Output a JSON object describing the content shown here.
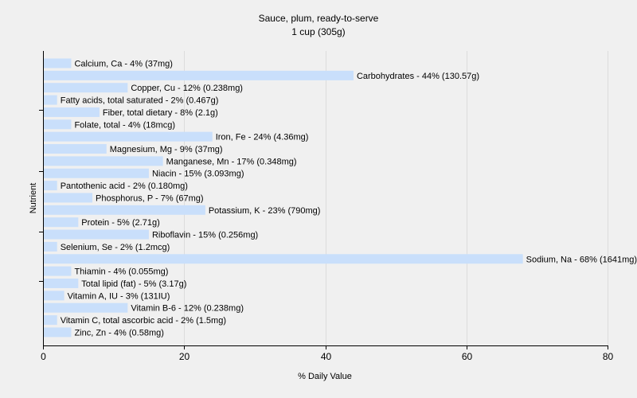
{
  "chart_data": {
    "type": "bar",
    "orientation": "horizontal",
    "title": "Sauce, plum, ready-to-serve",
    "subtitle": "1 cup (305g)",
    "xlabel": "% Daily Value",
    "ylabel": "Nutrient",
    "xlim": [
      0,
      80
    ],
    "xticks": [
      "0",
      "20",
      "40",
      "60",
      "80"
    ],
    "grid": true,
    "bar_color": "#c9dffb",
    "categories": [
      "Calcium, Ca",
      "Carbohydrates",
      "Copper, Cu",
      "Fatty acids, total saturated",
      "Fiber, total dietary",
      "Folate, total",
      "Iron, Fe",
      "Magnesium, Mg",
      "Manganese, Mn",
      "Niacin",
      "Pantothenic acid",
      "Phosphorus, P",
      "Potassium, K",
      "Protein",
      "Riboflavin",
      "Selenium, Se",
      "Sodium, Na",
      "Thiamin",
      "Total lipid (fat)",
      "Vitamin A, IU",
      "Vitamin B-6",
      "Vitamin C, total ascorbic acid",
      "Zinc, Zn"
    ],
    "values": [
      4,
      44,
      12,
      2,
      8,
      4,
      24,
      9,
      17,
      15,
      2,
      7,
      23,
      5,
      15,
      2,
      68,
      4,
      5,
      3,
      12,
      2,
      4
    ],
    "labels": [
      "Calcium, Ca - 4% (37mg)",
      "Carbohydrates - 44% (130.57g)",
      "Copper, Cu - 12% (0.238mg)",
      "Fatty acids, total saturated - 2% (0.467g)",
      "Fiber, total dietary - 8% (2.1g)",
      "Folate, total - 4% (18mcg)",
      "Iron, Fe - 24% (4.36mg)",
      "Magnesium, Mg - 9% (37mg)",
      "Manganese, Mn - 17% (0.348mg)",
      "Niacin - 15% (3.093mg)",
      "Pantothenic acid - 2% (0.180mg)",
      "Phosphorus, P - 7% (67mg)",
      "Potassium, K - 23% (790mg)",
      "Protein - 5% (2.71g)",
      "Riboflavin - 15% (0.256mg)",
      "Selenium, Se - 2% (1.2mcg)",
      "Sodium, Na - 68% (1641mg)",
      "Thiamin - 4% (0.055mg)",
      "Total lipid (fat) - 5% (3.17g)",
      "Vitamin A, IU - 3% (131IU)",
      "Vitamin B-6 - 12% (0.238mg)",
      "Vitamin C, total ascorbic acid - 2% (1.5mg)",
      "Zinc, Zn - 4% (0.58mg)"
    ]
  }
}
